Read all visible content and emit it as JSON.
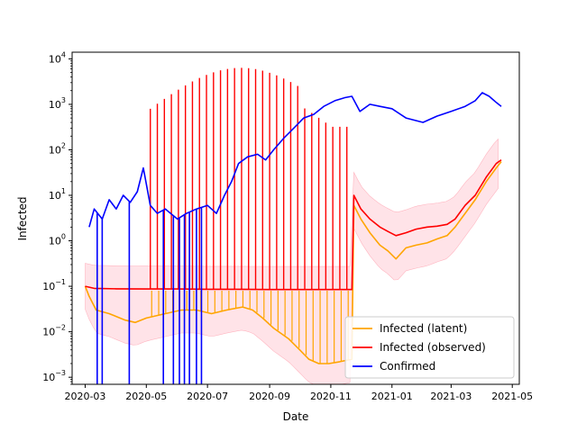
{
  "chart_data": {
    "type": "line",
    "title": "",
    "xlabel": "Date",
    "ylabel": "Infected",
    "yscale": "log",
    "xlim": [
      "2020-02-17",
      "2021-05-08"
    ],
    "ylim": [
      0.0007,
      14000
    ],
    "x_ticks": [
      "2020-03",
      "2020-05",
      "2020-07",
      "2020-09",
      "2020-11",
      "2021-01",
      "2021-03",
      "2021-05"
    ],
    "y_ticks": [
      {
        "value": 0.001,
        "mantissa": "10",
        "exponent": "−3"
      },
      {
        "value": 0.01,
        "mantissa": "10",
        "exponent": "−2"
      },
      {
        "value": 0.1,
        "mantissa": "10",
        "exponent": "−1"
      },
      {
        "value": 1,
        "mantissa": "10",
        "exponent": "0"
      },
      {
        "value": 10,
        "mantissa": "10",
        "exponent": "1"
      },
      {
        "value": 100,
        "mantissa": "10",
        "exponent": "2"
      },
      {
        "value": 1000,
        "mantissa": "10",
        "exponent": "3"
      },
      {
        "value": 10000,
        "mantissa": "10",
        "exponent": "4"
      }
    ],
    "grid": false,
    "legend_position": "lower-right",
    "series": [
      {
        "name": "Infected (latent)",
        "color": "#ffa500",
        "points": [
          [
            "2020-03-01",
            0.1
          ],
          [
            "2020-03-05",
            0.06
          ],
          [
            "2020-03-12",
            0.03
          ],
          [
            "2020-03-25",
            0.025
          ],
          [
            "2020-04-10",
            0.018
          ],
          [
            "2020-04-20",
            0.016
          ],
          [
            "2020-05-01",
            0.02
          ],
          [
            "2020-05-20",
            0.025
          ],
          [
            "2020-06-05",
            0.03
          ],
          [
            "2020-06-20",
            0.03
          ],
          [
            "2020-07-05",
            0.025
          ],
          [
            "2020-07-20",
            0.03
          ],
          [
            "2020-08-05",
            0.035
          ],
          [
            "2020-08-15",
            0.03
          ],
          [
            "2020-08-25",
            0.02
          ],
          [
            "2020-09-05",
            0.012
          ],
          [
            "2020-09-20",
            0.007
          ],
          [
            "2020-10-01",
            0.004
          ],
          [
            "2020-10-10",
            0.0025
          ],
          [
            "2020-10-20",
            0.002
          ],
          [
            "2020-10-30",
            0.002
          ],
          [
            "2020-11-10",
            0.0022
          ],
          [
            "2020-11-22",
            0.0025
          ],
          [
            "2020-11-24",
            6
          ],
          [
            "2020-12-01",
            3
          ],
          [
            "2020-12-10",
            1.5
          ],
          [
            "2020-12-20",
            0.8
          ],
          [
            "2020-12-28",
            0.6
          ],
          [
            "2021-01-05",
            0.4
          ],
          [
            "2021-01-15",
            0.7
          ],
          [
            "2021-01-25",
            0.8
          ],
          [
            "2021-02-05",
            0.9
          ],
          [
            "2021-02-15",
            1.1
          ],
          [
            "2021-02-25",
            1.3
          ],
          [
            "2021-03-05",
            2
          ],
          [
            "2021-03-15",
            4
          ],
          [
            "2021-03-25",
            8
          ],
          [
            "2021-04-05",
            20
          ],
          [
            "2021-04-15",
            40
          ],
          [
            "2021-04-20",
            55
          ]
        ]
      },
      {
        "name": "Infected (observed)",
        "color": "#ff0000",
        "points": [
          [
            "2020-03-01",
            0.1
          ],
          [
            "2020-03-10",
            0.09
          ],
          [
            "2020-04-01",
            0.088
          ],
          [
            "2020-05-01",
            0.087
          ],
          [
            "2020-06-01",
            0.087
          ],
          [
            "2020-07-01",
            0.086
          ],
          [
            "2020-08-01",
            0.086
          ],
          [
            "2020-09-01",
            0.085
          ],
          [
            "2020-10-01",
            0.085
          ],
          [
            "2020-11-01",
            0.085
          ],
          [
            "2020-11-22",
            0.085
          ],
          [
            "2020-11-24",
            10
          ],
          [
            "2020-12-01",
            5
          ],
          [
            "2020-12-10",
            3
          ],
          [
            "2020-12-20",
            2
          ],
          [
            "2020-12-28",
            1.6
          ],
          [
            "2021-01-05",
            1.3
          ],
          [
            "2021-01-15",
            1.5
          ],
          [
            "2021-01-25",
            1.8
          ],
          [
            "2021-02-05",
            2
          ],
          [
            "2021-02-15",
            2.1
          ],
          [
            "2021-02-25",
            2.3
          ],
          [
            "2021-03-05",
            3
          ],
          [
            "2021-03-15",
            6
          ],
          [
            "2021-03-25",
            10
          ],
          [
            "2021-04-05",
            25
          ],
          [
            "2021-04-15",
            50
          ],
          [
            "2021-04-20",
            60
          ]
        ]
      },
      {
        "name": "Confirmed",
        "color": "#0000ff",
        "points": [
          [
            "2020-03-05",
            2
          ],
          [
            "2020-03-10",
            5
          ],
          [
            "2020-03-18",
            3
          ],
          [
            "2020-03-25",
            8
          ],
          [
            "2020-04-01",
            5
          ],
          [
            "2020-04-08",
            10
          ],
          [
            "2020-04-15",
            7
          ],
          [
            "2020-04-22",
            12
          ],
          [
            "2020-04-28",
            40
          ],
          [
            "2020-05-05",
            6
          ],
          [
            "2020-05-12",
            4
          ],
          [
            "2020-05-20",
            5
          ],
          [
            "2020-06-01",
            3
          ],
          [
            "2020-06-10",
            4
          ],
          [
            "2020-06-20",
            5
          ],
          [
            "2020-07-01",
            6
          ],
          [
            "2020-07-10",
            4
          ],
          [
            "2020-07-18",
            10
          ],
          [
            "2020-07-25",
            20
          ],
          [
            "2020-08-01",
            50
          ],
          [
            "2020-08-10",
            70
          ],
          [
            "2020-08-20",
            80
          ],
          [
            "2020-08-28",
            60
          ],
          [
            "2020-09-05",
            100
          ],
          [
            "2020-09-15",
            180
          ],
          [
            "2020-09-25",
            300
          ],
          [
            "2020-10-05",
            500
          ],
          [
            "2020-10-15",
            600
          ],
          [
            "2020-10-25",
            900
          ],
          [
            "2020-11-05",
            1200
          ],
          [
            "2020-11-15",
            1400
          ],
          [
            "2020-11-22",
            1500
          ],
          [
            "2020-11-30",
            700
          ],
          [
            "2020-12-10",
            1000
          ],
          [
            "2020-12-20",
            900
          ],
          [
            "2021-01-01",
            800
          ],
          [
            "2021-01-15",
            500
          ],
          [
            "2021-02-01",
            400
          ],
          [
            "2021-02-15",
            550
          ],
          [
            "2021-03-01",
            700
          ],
          [
            "2021-03-15",
            900
          ],
          [
            "2021-03-25",
            1200
          ],
          [
            "2021-04-01",
            1800
          ],
          [
            "2021-04-08",
            1500
          ],
          [
            "2021-04-15",
            1100
          ],
          [
            "2021-04-20",
            900
          ]
        ]
      }
    ]
  }
}
